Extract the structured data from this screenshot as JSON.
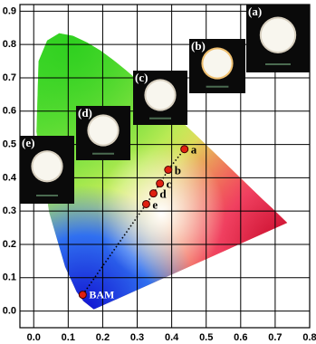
{
  "chart_data": {
    "type": "scatter",
    "xlim": [
      -0.04,
      0.8
    ],
    "ylim": [
      -0.05,
      0.92
    ],
    "xticks": [
      {
        "value": 0,
        "label": "0.0"
      },
      0.1,
      0.2,
      0.3,
      0.4,
      0.5,
      0.6,
      0.7,
      0.8
    ],
    "yticks": [
      {
        "value": 0,
        "label": "0.0"
      },
      0.1,
      0.2,
      0.3,
      0.4,
      0.5,
      0.6,
      0.7,
      0.8,
      0.9
    ],
    "grid": true,
    "series": [
      {
        "color": "#e02010",
        "labels": [
          "BAM",
          "e",
          "d",
          "c",
          "b",
          "a"
        ],
        "x": [
          0.142,
          0.326,
          0.347,
          0.366,
          0.39,
          0.437
        ],
        "values": [
          0.049,
          0.321,
          0.353,
          0.383,
          0.424,
          0.486
        ]
      }
    ],
    "insets": [
      "(a)",
      "(b)",
      "(c)",
      "(d)",
      "(e)"
    ]
  }
}
